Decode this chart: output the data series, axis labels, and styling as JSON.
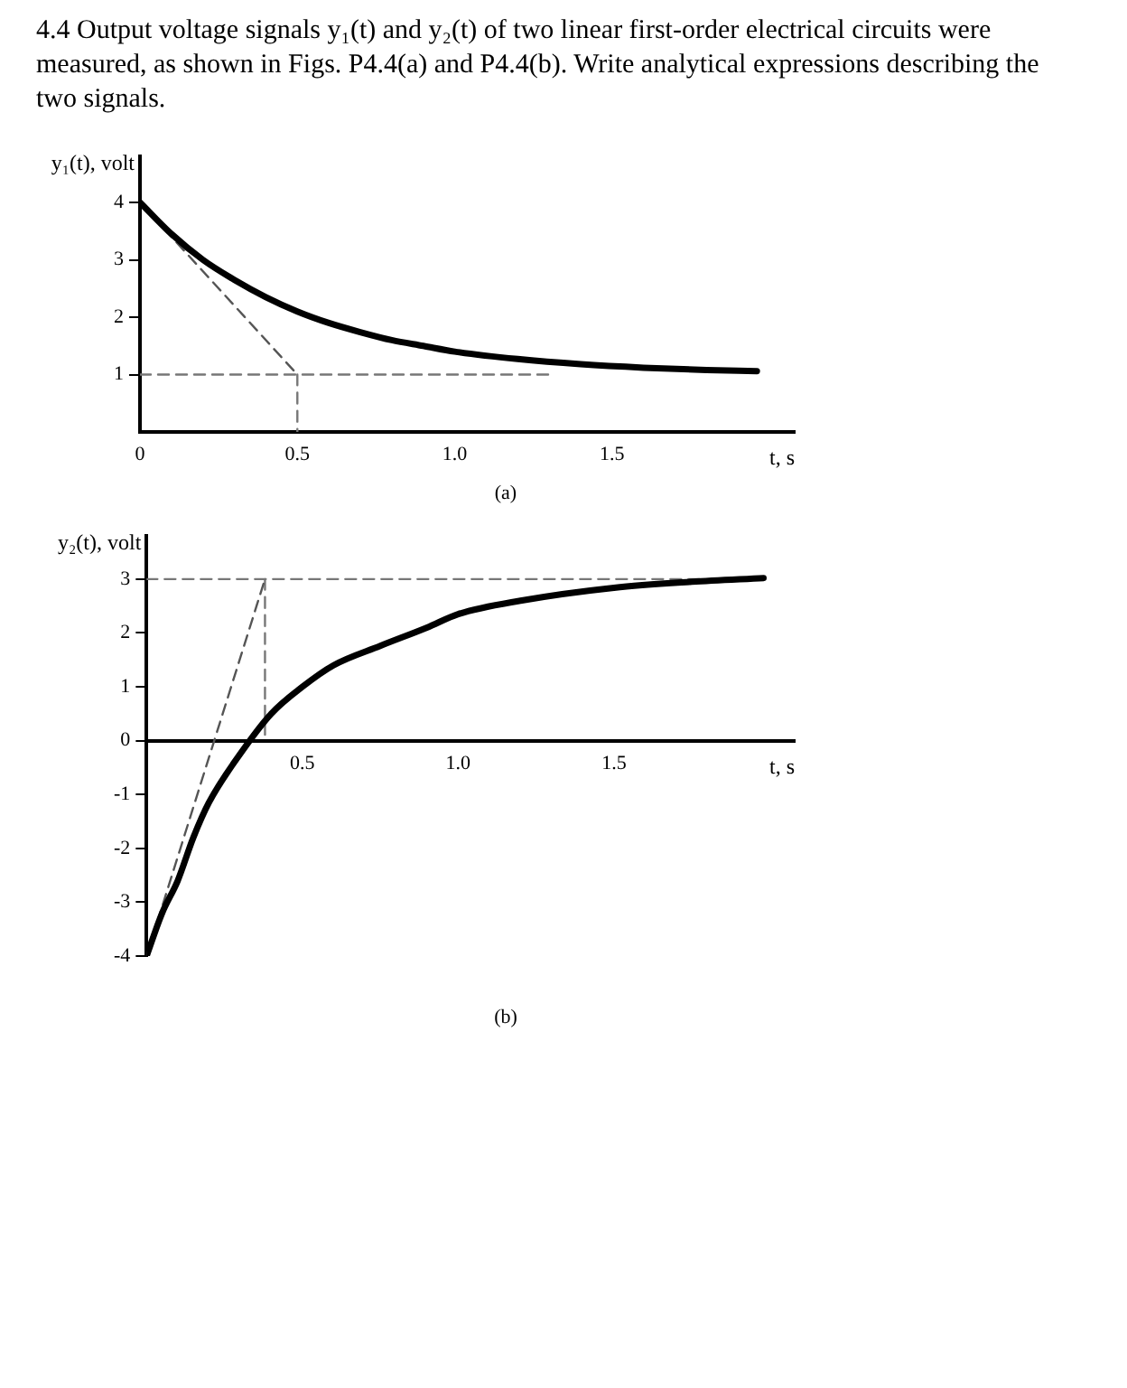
{
  "chart_data": [
    {
      "type": "line",
      "title": "4.4 Output voltage signals y₁(t) and y₂(t) of two linear first-order electrical circuits were measured, as shown in Figs. P4.4(a) and P4.4(b). Write analytical expressions describing the two signals.",
      "xlabel": "t, s",
      "ylabel": "y₁(t), volt",
      "annotations": [
        "(a)"
      ],
      "xlim": [
        0,
        2.08
      ],
      "ylim": [
        0,
        4.8
      ],
      "xticks": [
        0,
        0.5,
        {
          "value": 1,
          "label": "1.0"
        },
        1.5
      ],
      "yticks": [
        1,
        2,
        3,
        4
      ],
      "marker": "none",
      "series": [
        {
          "type": "line",
          "color": "#000000",
          "x": [
            0,
            0.1,
            0.2,
            0.3,
            0.4,
            0.5,
            0.6,
            0.7,
            0.8,
            0.9,
            1.0,
            1.2,
            1.4,
            1.6,
            1.8,
            1.96
          ],
          "values": [
            4,
            3.45,
            3.0,
            2.65,
            2.35,
            2.1,
            1.9,
            1.74,
            1.6,
            1.5,
            1.4,
            1.27,
            1.18,
            1.12,
            1.08,
            1.06
          ]
        },
        {
          "type": "line",
          "color": "#555555",
          "line_style": "dashed",
          "x": [
            0,
            0.5
          ],
          "values": [
            4,
            1
          ]
        },
        {
          "type": "line",
          "color": "#777777",
          "line_style": "dashed",
          "x": [
            0.5,
            0.5
          ],
          "values": [
            1,
            0
          ]
        },
        {
          "type": "line",
          "color": "#777777",
          "line_style": "dashed",
          "x": [
            0,
            1.3
          ],
          "values": [
            1,
            1
          ]
        }
      ]
    },
    {
      "type": "line",
      "xlabel": "t, s",
      "ylabel": "y₂(t), volt",
      "annotations": [
        "(b)"
      ],
      "xlim": [
        0,
        2.08
      ],
      "ylim": [
        -4,
        3.8
      ],
      "xticks": [
        0.5,
        {
          "value": 1,
          "label": "1.0"
        },
        1.5
      ],
      "yticks": [
        -4,
        -3,
        -2,
        -1,
        0,
        1,
        2,
        3
      ],
      "marker": "none",
      "series": [
        {
          "type": "line",
          "color": "#000000",
          "x": [
            0,
            0.05,
            0.1,
            0.15,
            0.2,
            0.3,
            0.4,
            0.5,
            0.6,
            0.75,
            0.9,
            1.0,
            1.2,
            1.5,
            1.75,
            1.98
          ],
          "values": [
            -4,
            -3.2,
            -2.6,
            -1.8,
            -1.15,
            -0.25,
            0.5,
            1.0,
            1.4,
            1.76,
            2.1,
            2.35,
            2.6,
            2.84,
            2.95,
            3.02
          ]
        },
        {
          "type": "line",
          "color": "#555555",
          "line_style": "dashed",
          "x": [
            0,
            0.38
          ],
          "values": [
            -4,
            3
          ]
        },
        {
          "type": "line",
          "color": "#777777",
          "line_style": "dashed",
          "x": [
            0.38,
            0.38
          ],
          "values": [
            3,
            0
          ]
        },
        {
          "type": "line",
          "color": "#777777",
          "line_style": "dashed",
          "x": [
            0,
            1.78
          ],
          "values": [
            3,
            3
          ]
        }
      ]
    }
  ]
}
